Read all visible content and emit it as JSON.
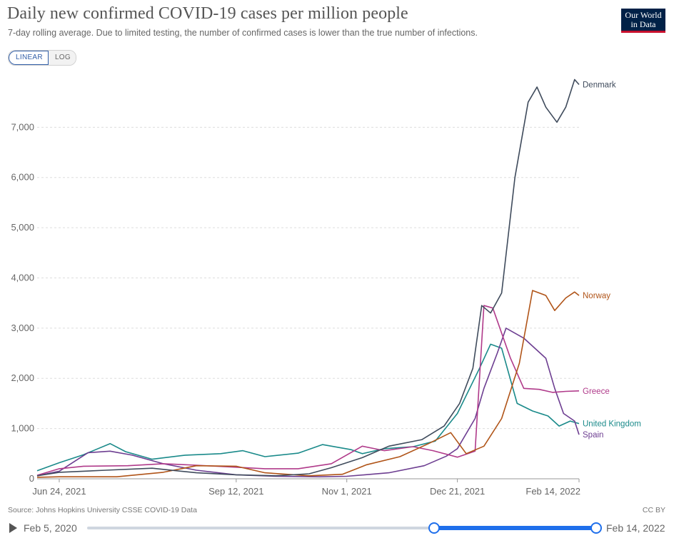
{
  "header": {
    "title": "Daily new confirmed COVID-19 cases per million people",
    "subtitle": "7-day rolling average. Due to limited testing, the number of confirmed cases is lower than the true number of infections.",
    "logo_line1": "Our World",
    "logo_line2": "in Data"
  },
  "scale_toggle": {
    "linear_label": "LINEAR",
    "log_label": "LOG",
    "selected": "LINEAR"
  },
  "footer": {
    "source": "Source: Johns Hopkins University CSSE COVID-19 Data",
    "license": "CC BY"
  },
  "timeline": {
    "start_label": "Feb 5, 2020",
    "end_label": "Feb 14, 2022",
    "play_icon": "play-icon"
  },
  "chart_data": {
    "type": "line",
    "title": "Daily new confirmed COVID-19 cases per million people",
    "xlabel": "",
    "ylabel": "",
    "xlim": [
      "2021-06-14",
      "2022-02-14"
    ],
    "ylim": [
      0,
      7900
    ],
    "yticks": [
      0,
      1000,
      2000,
      3000,
      4000,
      5000,
      6000,
      7000
    ],
    "ytick_labels": [
      "0",
      "1,000",
      "2,000",
      "3,000",
      "4,000",
      "5,000",
      "6,000",
      "7,000"
    ],
    "xticks": [
      "2021-06-24",
      "2021-09-12",
      "2021-11-01",
      "2021-12-21",
      "2022-02-14"
    ],
    "xtick_labels": [
      "Jun 24, 2021",
      "Sep 12, 2021",
      "Nov 1, 2021",
      "Dec 21, 2021",
      "Feb 14, 2022"
    ],
    "grid": "horizontal dashed",
    "legend": "line-end labels",
    "series": [
      {
        "name": "United Kingdom",
        "color": "#1a8a8a",
        "points": [
          [
            "2021-06-14",
            160
          ],
          [
            "2021-06-24",
            320
          ],
          [
            "2021-07-05",
            480
          ],
          [
            "2021-07-17",
            700
          ],
          [
            "2021-07-24",
            540
          ],
          [
            "2021-08-05",
            390
          ],
          [
            "2021-08-20",
            470
          ],
          [
            "2021-09-05",
            500
          ],
          [
            "2021-09-15",
            560
          ],
          [
            "2021-09-25",
            440
          ],
          [
            "2021-10-10",
            510
          ],
          [
            "2021-10-21",
            680
          ],
          [
            "2021-11-03",
            580
          ],
          [
            "2021-11-08",
            500
          ],
          [
            "2021-11-18",
            600
          ],
          [
            "2021-12-01",
            640
          ],
          [
            "2021-12-11",
            750
          ],
          [
            "2021-12-21",
            1300
          ],
          [
            "2021-12-31",
            2200
          ],
          [
            "2022-01-05",
            2680
          ],
          [
            "2022-01-10",
            2600
          ],
          [
            "2022-01-17",
            1500
          ],
          [
            "2022-01-24",
            1350
          ],
          [
            "2022-01-31",
            1250
          ],
          [
            "2022-02-05",
            1050
          ],
          [
            "2022-02-10",
            1150
          ],
          [
            "2022-02-14",
            1100
          ]
        ]
      },
      {
        "name": "Spain",
        "color": "#6d3e91",
        "points": [
          [
            "2021-06-14",
            60
          ],
          [
            "2021-06-24",
            150
          ],
          [
            "2021-07-07",
            520
          ],
          [
            "2021-07-17",
            550
          ],
          [
            "2021-07-27",
            470
          ],
          [
            "2021-08-10",
            300
          ],
          [
            "2021-08-25",
            170
          ],
          [
            "2021-09-12",
            80
          ],
          [
            "2021-09-30",
            50
          ],
          [
            "2021-10-20",
            40
          ],
          [
            "2021-11-01",
            50
          ],
          [
            "2021-11-20",
            120
          ],
          [
            "2021-12-06",
            260
          ],
          [
            "2021-12-16",
            450
          ],
          [
            "2021-12-21",
            600
          ],
          [
            "2021-12-29",
            1200
          ],
          [
            "2022-01-02",
            1800
          ],
          [
            "2022-01-08",
            2500
          ],
          [
            "2022-01-12",
            3000
          ],
          [
            "2022-01-20",
            2800
          ],
          [
            "2022-01-30",
            2400
          ],
          [
            "2022-02-03",
            1800
          ],
          [
            "2022-02-07",
            1300
          ],
          [
            "2022-02-12",
            1150
          ],
          [
            "2022-02-14",
            880
          ]
        ]
      },
      {
        "name": "Greece",
        "color": "#b03a8a",
        "points": [
          [
            "2021-06-14",
            70
          ],
          [
            "2021-06-24",
            200
          ],
          [
            "2021-07-05",
            250
          ],
          [
            "2021-07-25",
            260
          ],
          [
            "2021-08-10",
            300
          ],
          [
            "2021-08-25",
            270
          ],
          [
            "2021-09-12",
            230
          ],
          [
            "2021-09-25",
            200
          ],
          [
            "2021-10-10",
            200
          ],
          [
            "2021-10-25",
            300
          ],
          [
            "2021-11-08",
            650
          ],
          [
            "2021-11-18",
            560
          ],
          [
            "2021-12-01",
            640
          ],
          [
            "2021-12-10",
            560
          ],
          [
            "2021-12-21",
            430
          ],
          [
            "2021-12-29",
            550
          ],
          [
            "2022-01-02",
            3450
          ],
          [
            "2022-01-06",
            3400
          ],
          [
            "2022-01-14",
            2400
          ],
          [
            "2022-01-20",
            1800
          ],
          [
            "2022-01-27",
            1780
          ],
          [
            "2022-02-02",
            1720
          ],
          [
            "2022-02-08",
            1740
          ],
          [
            "2022-02-14",
            1750
          ]
        ]
      },
      {
        "name": "Norway",
        "color": "#b05418",
        "points": [
          [
            "2021-06-14",
            30
          ],
          [
            "2021-06-24",
            40
          ],
          [
            "2021-07-20",
            40
          ],
          [
            "2021-08-10",
            130
          ],
          [
            "2021-08-25",
            260
          ],
          [
            "2021-09-12",
            250
          ],
          [
            "2021-09-25",
            120
          ],
          [
            "2021-10-15",
            60
          ],
          [
            "2021-10-30",
            90
          ],
          [
            "2021-11-10",
            280
          ],
          [
            "2021-11-25",
            440
          ],
          [
            "2021-12-08",
            700
          ],
          [
            "2021-12-18",
            920
          ],
          [
            "2021-12-25",
            500
          ],
          [
            "2022-01-02",
            650
          ],
          [
            "2022-01-10",
            1200
          ],
          [
            "2022-01-18",
            2300
          ],
          [
            "2022-01-24",
            3750
          ],
          [
            "2022-01-30",
            3650
          ],
          [
            "2022-02-03",
            3350
          ],
          [
            "2022-02-08",
            3600
          ],
          [
            "2022-02-12",
            3720
          ],
          [
            "2022-02-14",
            3650
          ]
        ]
      },
      {
        "name": "Denmark",
        "color": "#3f4b5c",
        "points": [
          [
            "2021-06-14",
            60
          ],
          [
            "2021-06-24",
            130
          ],
          [
            "2021-07-15",
            170
          ],
          [
            "2021-08-05",
            210
          ],
          [
            "2021-08-25",
            120
          ],
          [
            "2021-09-12",
            80
          ],
          [
            "2021-09-30",
            60
          ],
          [
            "2021-10-15",
            100
          ],
          [
            "2021-10-25",
            220
          ],
          [
            "2021-11-08",
            420
          ],
          [
            "2021-11-20",
            650
          ],
          [
            "2021-12-05",
            780
          ],
          [
            "2021-12-15",
            1050
          ],
          [
            "2021-12-22",
            1500
          ],
          [
            "2021-12-28",
            2200
          ],
          [
            "2022-01-01",
            3450
          ],
          [
            "2022-01-05",
            3300
          ],
          [
            "2022-01-10",
            3700
          ],
          [
            "2022-01-16",
            6000
          ],
          [
            "2022-01-22",
            7500
          ],
          [
            "2022-01-26",
            7800
          ],
          [
            "2022-01-30",
            7400
          ],
          [
            "2022-02-04",
            7100
          ],
          [
            "2022-02-08",
            7400
          ],
          [
            "2022-02-12",
            7950
          ],
          [
            "2022-02-14",
            7850
          ]
        ]
      }
    ]
  }
}
